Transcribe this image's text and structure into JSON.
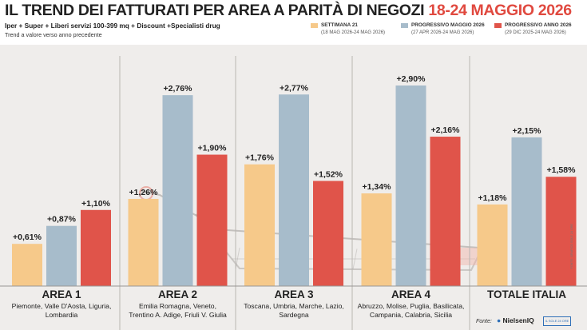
{
  "header": {
    "title_main": "IL TREND DEI FATTURATI PER AREA A PARITÀ DI NEGOZI",
    "title_date": "18-24 MAGGIO 2026",
    "subtitle": "Iper + Super + Liberi servizi 100-399 mq + Discount +Specialisti drug",
    "note": "Trend a valore verso anno precedente"
  },
  "legend": [
    {
      "label": "SETTIMANA 21",
      "sub": "(18 MAG 2026-24 MAG 2026)",
      "color": "#f6c98a"
    },
    {
      "label": "PROGRESSIVO MAGGIO 2026",
      "sub": "(27 APR 2026-24 MAG 2026)",
      "color": "#a7bccb"
    },
    {
      "label": "PROGRESSIVO ANNO 2026",
      "sub": "(29 DIC 2025-24 MAG 2026)",
      "color": "#e0544a"
    }
  ],
  "chart_data": {
    "type": "bar",
    "title": "IL TREND DEI FATTURATI PER AREA A PARITÀ DI NEGOZI 18-24 MAGGIO 2026",
    "categories": [
      "AREA 1",
      "AREA 2",
      "AREA 3",
      "AREA 4",
      "TOTALE ITALIA"
    ],
    "category_regions": [
      [
        "Piemonte, Valle D'Aosta, Liguria,",
        "Lombardia"
      ],
      [
        "Emilia Romagna, Veneto,",
        "Trentino A. Adige, Friuli V. Giulia"
      ],
      [
        "Toscana, Umbria, Marche, Lazio,",
        "Sardegna"
      ],
      [
        "Abruzzo, Molise, Puglia, Basilicata,",
        "Campania, Calabria, Sicilia"
      ],
      []
    ],
    "series": [
      {
        "name": "SETTIMANA 21",
        "values": [
          0.61,
          1.26,
          1.76,
          1.34,
          1.18
        ],
        "labels": [
          "+0,61%",
          "+1,26%",
          "+1,76%",
          "+1,34%",
          "+1,18%"
        ]
      },
      {
        "name": "PROGRESSIVO MAGGIO 2026",
        "values": [
          0.87,
          2.76,
          2.77,
          2.9,
          2.15
        ],
        "labels": [
          "+0,87%",
          "+2,76%",
          "+2,77%",
          "+2,90%",
          "+2,15%"
        ]
      },
      {
        "name": "PROGRESSIVO ANNO 2026",
        "values": [
          1.1,
          1.9,
          1.52,
          2.16,
          1.58
        ],
        "labels": [
          "+1,10%",
          "+1,90%",
          "+1,52%",
          "+2,16%",
          "+1,58%"
        ]
      }
    ],
    "colors": [
      "#f6c98a",
      "#a7bccb",
      "#e0544a"
    ],
    "ylim": [
      0,
      3.0
    ],
    "xlabel": "",
    "ylabel": "",
    "grid": false,
    "legend_position": "top-right"
  },
  "footer": {
    "source_label": "Fonte:",
    "logo_nielsen": "NielsenIQ",
    "logo_box": "IL SOLE 24 ORE",
    "credit": "FONTE: GRAFICO SOLE 24 ORE"
  }
}
